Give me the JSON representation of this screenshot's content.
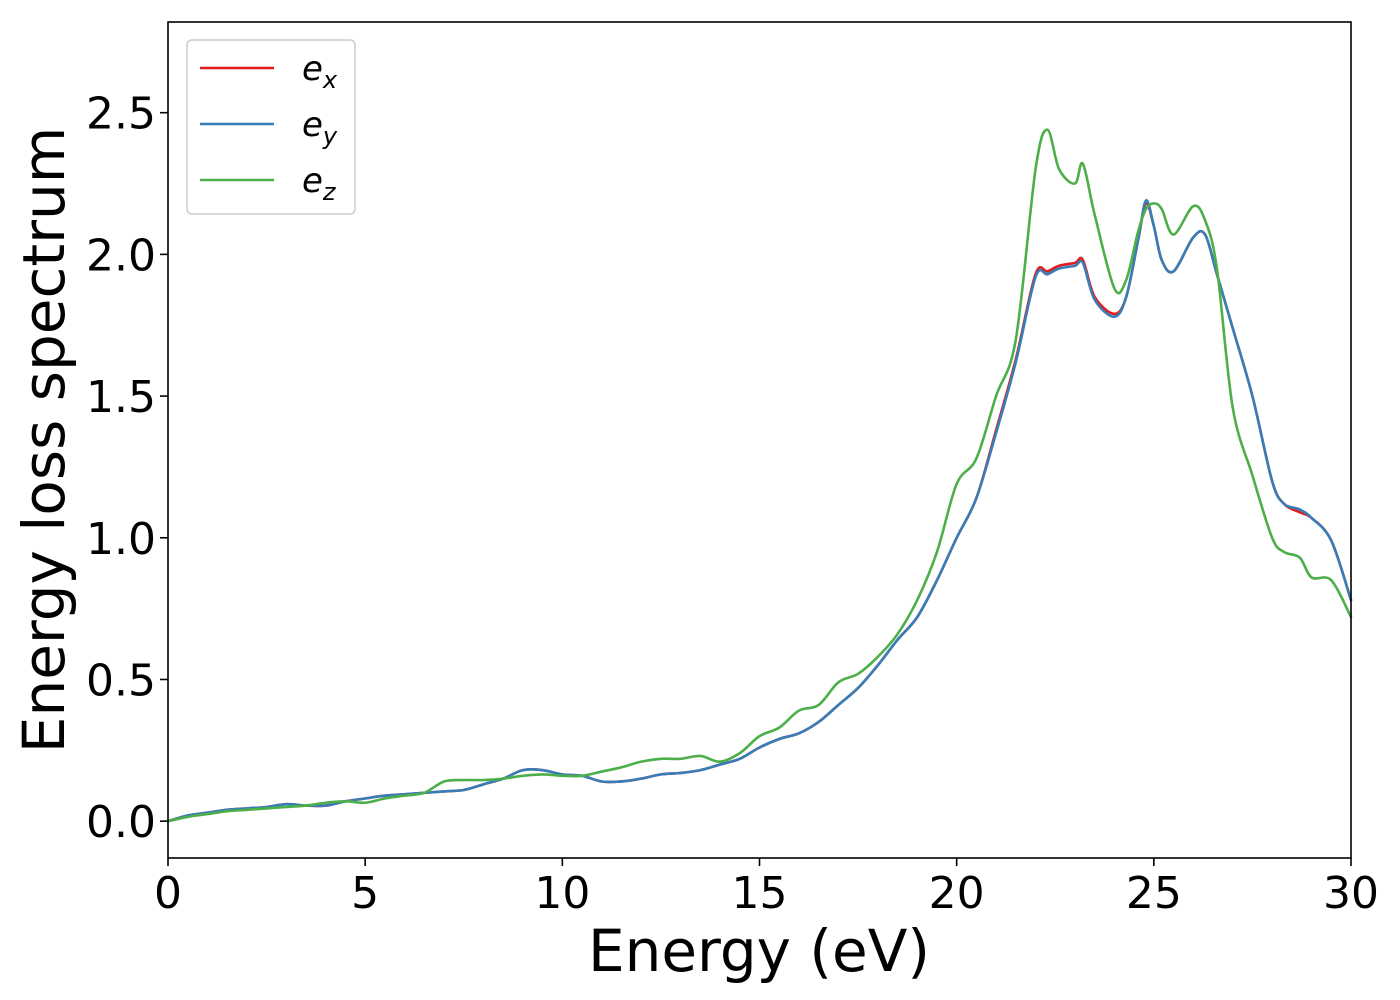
{
  "chart_data": {
    "type": "line",
    "title": "",
    "xlabel": "Energy (eV)",
    "ylabel": "Energy loss spectrum",
    "xlim": [
      0,
      30
    ],
    "ylim": [
      -0.13,
      2.82
    ],
    "xticks": [
      0,
      5,
      10,
      15,
      20,
      25,
      30
    ],
    "xtick_labels": [
      "0",
      "5",
      "10",
      "15",
      "20",
      "25",
      "30"
    ],
    "yticks": [
      0.0,
      0.5,
      1.0,
      1.5,
      2.0,
      2.5
    ],
    "ytick_labels": [
      "0.0",
      "0.5",
      "1.0",
      "1.5",
      "2.0",
      "2.5"
    ],
    "grid": false,
    "legend_position": "top-left",
    "series": [
      {
        "name": "e_x",
        "legend_base": "e",
        "legend_sub": "x",
        "color": "#e41a1c",
        "x": [
          0,
          0.5,
          1,
          1.5,
          2,
          2.5,
          3,
          3.5,
          4,
          4.5,
          5,
          5.5,
          6,
          6.5,
          7,
          7.5,
          8,
          8.5,
          9,
          9.5,
          10,
          10.5,
          11,
          11.5,
          12,
          12.5,
          13,
          13.5,
          14,
          14.5,
          15,
          15.5,
          16,
          16.5,
          17,
          17.5,
          18,
          18.5,
          19,
          19.5,
          20,
          20.5,
          21,
          21.5,
          22,
          22.3,
          22.6,
          23,
          23.2,
          23.5,
          24,
          24.3,
          24.6,
          24.8,
          25,
          25.2,
          25.5,
          26,
          26.3,
          26.6,
          27,
          27.5,
          28,
          28.3,
          28.7,
          29,
          29.5,
          30
        ],
        "y": [
          0.0,
          0.02,
          0.03,
          0.04,
          0.045,
          0.05,
          0.06,
          0.055,
          0.055,
          0.07,
          0.08,
          0.09,
          0.095,
          0.1,
          0.105,
          0.11,
          0.13,
          0.15,
          0.18,
          0.18,
          0.165,
          0.16,
          0.14,
          0.14,
          0.15,
          0.165,
          0.17,
          0.18,
          0.2,
          0.22,
          0.26,
          0.29,
          0.31,
          0.35,
          0.41,
          0.47,
          0.55,
          0.64,
          0.72,
          0.85,
          1.0,
          1.14,
          1.38,
          1.63,
          1.93,
          1.94,
          1.96,
          1.97,
          1.98,
          1.85,
          1.79,
          1.85,
          2.05,
          2.18,
          2.1,
          1.98,
          1.94,
          2.06,
          2.07,
          1.93,
          1.74,
          1.5,
          1.2,
          1.12,
          1.09,
          1.07,
          0.99,
          0.78
        ]
      },
      {
        "name": "e_y",
        "legend_base": "e",
        "legend_sub": "y",
        "color": "#377eb8",
        "x": [
          0,
          0.5,
          1,
          1.5,
          2,
          2.5,
          3,
          3.5,
          4,
          4.5,
          5,
          5.5,
          6,
          6.5,
          7,
          7.5,
          8,
          8.5,
          9,
          9.5,
          10,
          10.5,
          11,
          11.5,
          12,
          12.5,
          13,
          13.5,
          14,
          14.5,
          15,
          15.5,
          16,
          16.5,
          17,
          17.5,
          18,
          18.5,
          19,
          19.5,
          20,
          20.5,
          21,
          21.5,
          22,
          22.3,
          22.6,
          23,
          23.2,
          23.5,
          24,
          24.3,
          24.6,
          24.8,
          25,
          25.2,
          25.5,
          26,
          26.3,
          26.6,
          27,
          27.5,
          28,
          28.3,
          28.7,
          29,
          29.5,
          30
        ],
        "y": [
          0.0,
          0.02,
          0.03,
          0.04,
          0.045,
          0.05,
          0.06,
          0.055,
          0.055,
          0.07,
          0.08,
          0.09,
          0.095,
          0.1,
          0.105,
          0.11,
          0.13,
          0.15,
          0.18,
          0.18,
          0.165,
          0.16,
          0.14,
          0.14,
          0.15,
          0.165,
          0.17,
          0.18,
          0.2,
          0.22,
          0.26,
          0.29,
          0.31,
          0.35,
          0.41,
          0.47,
          0.55,
          0.64,
          0.72,
          0.85,
          1.0,
          1.14,
          1.37,
          1.62,
          1.92,
          1.93,
          1.95,
          1.96,
          1.97,
          1.84,
          1.78,
          1.85,
          2.05,
          2.19,
          2.1,
          1.98,
          1.94,
          2.06,
          2.07,
          1.93,
          1.74,
          1.5,
          1.2,
          1.12,
          1.1,
          1.07,
          0.99,
          0.78
        ]
      },
      {
        "name": "e_z",
        "legend_base": "e",
        "legend_sub": "z",
        "color": "#4daf4a",
        "x": [
          0,
          0.5,
          1,
          1.5,
          2,
          2.5,
          3,
          3.5,
          4,
          4.5,
          5,
          5.5,
          6,
          6.5,
          7,
          7.5,
          8,
          8.5,
          9,
          9.5,
          10,
          10.5,
          11,
          11.5,
          12,
          12.5,
          13,
          13.5,
          14,
          14.5,
          15,
          15.5,
          16,
          16.5,
          17,
          17.5,
          18,
          18.5,
          19,
          19.5,
          20,
          20.5,
          21,
          21.5,
          22,
          22.3,
          22.6,
          23,
          23.2,
          23.5,
          24,
          24.3,
          24.6,
          24.8,
          25,
          25.2,
          25.5,
          26,
          26.3,
          26.6,
          27,
          27.5,
          28,
          28.3,
          28.7,
          29,
          29.5,
          30
        ],
        "y": [
          0.0,
          0.015,
          0.025,
          0.035,
          0.04,
          0.045,
          0.05,
          0.055,
          0.065,
          0.07,
          0.065,
          0.08,
          0.09,
          0.1,
          0.14,
          0.145,
          0.145,
          0.15,
          0.16,
          0.165,
          0.16,
          0.16,
          0.175,
          0.19,
          0.21,
          0.22,
          0.22,
          0.23,
          0.21,
          0.24,
          0.3,
          0.33,
          0.39,
          0.41,
          0.49,
          0.52,
          0.58,
          0.66,
          0.78,
          0.95,
          1.19,
          1.28,
          1.5,
          1.7,
          2.3,
          2.44,
          2.3,
          2.25,
          2.32,
          2.14,
          1.88,
          1.91,
          2.08,
          2.16,
          2.18,
          2.16,
          2.07,
          2.17,
          2.12,
          1.95,
          1.46,
          1.22,
          1.0,
          0.95,
          0.93,
          0.86,
          0.85,
          0.72
        ]
      }
    ]
  }
}
